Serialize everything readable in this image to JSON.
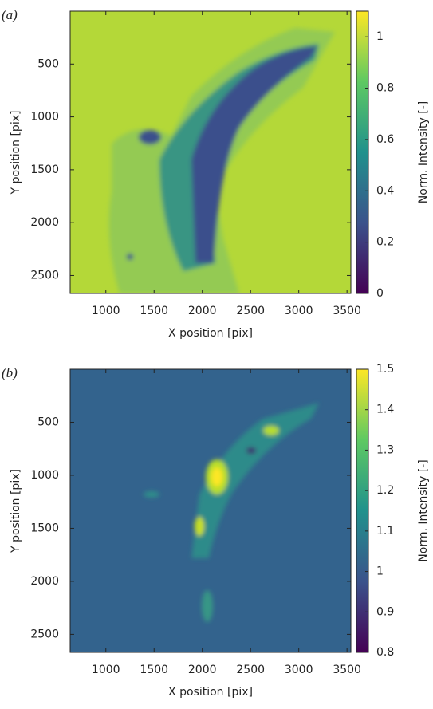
{
  "chart_data": [
    {
      "type": "heatmap",
      "panel_label": "(a)",
      "xlabel": "X position [pix]",
      "ylabel": "Y position [pix]",
      "colorbar_label": "Norm. Intensity [-]",
      "xlim": [
        630,
        3540
      ],
      "ylim": [
        2670,
        0
      ],
      "xticks": [
        1000,
        1500,
        2000,
        2500,
        3000,
        3500
      ],
      "yticks": [
        500,
        1000,
        1500,
        2000,
        2500
      ],
      "clim": [
        0,
        1.1
      ],
      "cticks": [
        0,
        0.2,
        0.4,
        0.6,
        0.8,
        1
      ]
    },
    {
      "type": "heatmap",
      "panel_label": "(b)",
      "xlabel": "X position [pix]",
      "ylabel": "Y position [pix]",
      "colorbar_label": "Norm. Intensity [-]",
      "xlim": [
        630,
        3540
      ],
      "ylim": [
        2670,
        0
      ],
      "xticks": [
        1000,
        1500,
        2000,
        2500,
        3000,
        3500
      ],
      "yticks": [
        500,
        1000,
        1500,
        2000,
        2500
      ],
      "clim": [
        0.8,
        1.5
      ],
      "cticks": [
        0.8,
        0.9,
        1,
        1.1,
        1.2,
        1.3,
        1.4,
        1.5
      ]
    }
  ]
}
